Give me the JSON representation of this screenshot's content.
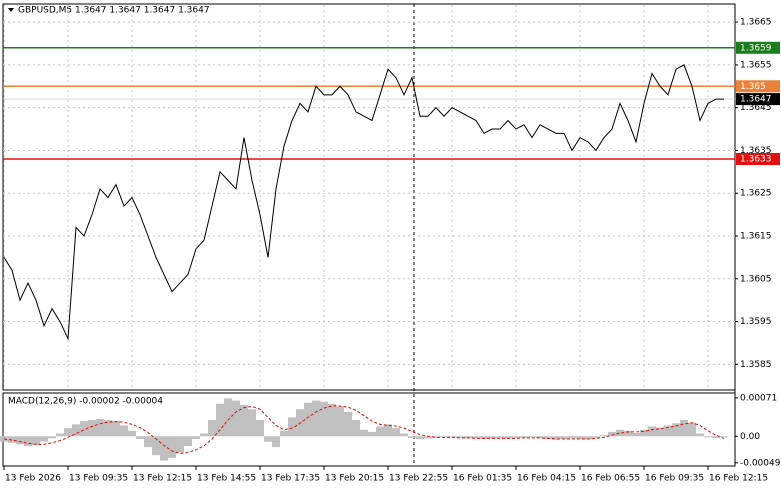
{
  "chart_data": [
    {
      "type": "line",
      "title": "GBPUSD,M5  1.3647 1.3647 1.3647 1.3647",
      "color": "#000000",
      "values": [
        1.361,
        1.3607,
        1.36,
        1.3604,
        1.36,
        1.3594,
        1.3598,
        1.3595,
        1.3591,
        1.3617,
        1.3615,
        1.362,
        1.3626,
        1.3624,
        1.3627,
        1.3622,
        1.3624,
        1.362,
        1.3615,
        1.361,
        1.3606,
        1.3602,
        1.3604,
        1.3606,
        1.3612,
        1.3614,
        1.3622,
        1.363,
        1.3628,
        1.3626,
        1.3638,
        1.3628,
        1.362,
        1.361,
        1.3626,
        1.3636,
        1.3642,
        1.3646,
        1.3644,
        1.365,
        1.3648,
        1.3648,
        1.365,
        1.3648,
        1.3644,
        1.3643,
        1.3642,
        1.3648,
        1.3654,
        1.3652,
        1.3648,
        1.3652,
        1.3643,
        1.3643,
        1.3645,
        1.3643,
        1.3645,
        1.3644,
        1.3643,
        1.3642,
        1.3639,
        1.364,
        1.364,
        1.3642,
        1.364,
        1.3641,
        1.3638,
        1.3641,
        1.364,
        1.3639,
        1.3639,
        1.3635,
        1.3638,
        1.3637,
        1.3635,
        1.3638,
        1.364,
        1.3646,
        1.3642,
        1.3637,
        1.3646,
        1.3653,
        1.365,
        1.3648,
        1.3654,
        1.3655,
        1.365,
        1.3642,
        1.3646,
        1.3647,
        1.3647
      ],
      "ylim": [
        1.3579,
        1.3669
      ],
      "yticks": [
        1.3585,
        1.3595,
        1.3605,
        1.3615,
        1.3625,
        1.3635,
        1.3645,
        1.3655,
        1.3665
      ],
      "grid": true,
      "levels": [
        {
          "value": 1.3659,
          "color": "#1a7f1a"
        },
        {
          "value": 1.365,
          "color": "#e8823a"
        },
        {
          "value": 1.3633,
          "color": "#e01010"
        }
      ],
      "last_price": 1.3647
    },
    {
      "type": "macd",
      "title": "MACD(12,26,9) -0.00002 -0.00004",
      "categories": [
        "13 Feb 2026",
        null,
        null,
        null,
        null,
        null,
        null,
        null,
        "13 Feb 09:35",
        null,
        null,
        null,
        null,
        null,
        null,
        null,
        "13 Feb 12:15",
        null,
        null,
        null,
        null,
        null,
        null,
        null,
        "13 Feb 14:55",
        null,
        null,
        null,
        null,
        null,
        null,
        null,
        "13 Feb 17:35",
        null,
        null,
        null,
        null,
        null,
        null,
        null,
        "13 Feb 20:15",
        null,
        null,
        null,
        null,
        null,
        null,
        null,
        "13 Feb 22:55",
        null,
        null,
        null,
        null,
        null,
        null,
        null,
        "16 Feb 01:35",
        null,
        null,
        null,
        null,
        null,
        null,
        null,
        "16 Feb 04:15",
        null,
        null,
        null,
        null,
        null,
        null,
        null,
        "16 Feb 06:55",
        null,
        null,
        null,
        null,
        null,
        null,
        null,
        "16 Feb 09:35",
        null,
        null,
        null,
        null,
        null,
        null,
        null,
        "16 Feb 12:15",
        null,
        null
      ],
      "series": [
        {
          "name": "MACD",
          "color": "#c0c0c0",
          "values": [
            -0.0001,
            -0.00012,
            -0.00015,
            -0.00018,
            -0.00016,
            -0.0001,
            -4e-05,
            5e-05,
            0.00015,
            0.00022,
            0.00028,
            0.0003,
            0.00032,
            0.0003,
            0.00028,
            0.0002,
            0.0001,
            -5e-05,
            -0.0002,
            -0.00035,
            -0.00045,
            -0.0004,
            -0.0003,
            -0.00018,
            -5e-05,
            5e-05,
            0.0003,
            0.0006,
            0.0007,
            0.00066,
            0.00058,
            0.0005,
            0.0003,
            -0.0001,
            -0.0002,
            0.0001,
            0.00035,
            0.0005,
            0.00062,
            0.00066,
            0.00064,
            0.0006,
            0.00055,
            0.00045,
            0.0003,
            0.00012,
            8e-05,
            0.00018,
            0.00022,
            0.00015,
            5e-05,
            -3e-05,
            -5e-05,
            -4e-05,
            -3e-05,
            -2e-05,
            -2e-05,
            -3e-05,
            -4e-05,
            -4e-05,
            -5e-05,
            -4e-05,
            -3e-05,
            -4e-05,
            -3e-05,
            -3e-05,
            -2e-05,
            -4e-05,
            -5e-05,
            -6e-05,
            -5e-05,
            -4e-05,
            -5e-05,
            -6e-05,
            -3e-05,
            2e-05,
            8e-05,
            0.00012,
            0.0001,
            6e-05,
            0.00012,
            0.00018,
            0.00016,
            0.0002,
            0.00024,
            0.0003,
            0.00025,
            5e-05,
            -2e-05,
            -3e-05,
            -2e-05
          ]
        },
        {
          "name": "Signal",
          "color": "#e01010",
          "values": [
            -5e-05,
            -7e-05,
            -0.0001,
            -0.00013,
            -0.00015,
            -0.00015,
            -0.00012,
            -8e-05,
            -2e-05,
            5e-05,
            0.00012,
            0.00018,
            0.00023,
            0.00026,
            0.00027,
            0.00026,
            0.00022,
            0.00016,
            7e-05,
            -5e-05,
            -0.00017,
            -0.00027,
            -0.00032,
            -0.0003,
            -0.00025,
            -0.00018,
            -5e-05,
            0.00012,
            0.0003,
            0.00045,
            0.00053,
            0.00055,
            0.0005,
            0.00035,
            0.0002,
            0.00012,
            0.00015,
            0.00024,
            0.00035,
            0.00045,
            0.00052,
            0.00056,
            0.00056,
            0.00054,
            0.00048,
            0.00038,
            0.00028,
            0.00022,
            0.0002,
            0.00019,
            0.00015,
            9e-05,
            3e-05,
            0.0,
            -2e-05,
            -2e-05,
            -2e-05,
            -3e-05,
            -3e-05,
            -4e-05,
            -4e-05,
            -4e-05,
            -4e-05,
            -4e-05,
            -4e-05,
            -3e-05,
            -3e-05,
            -3e-05,
            -4e-05,
            -5e-05,
            -5e-05,
            -5e-05,
            -5e-05,
            -5e-05,
            -4e-05,
            -2e-05,
            2e-05,
            6e-05,
            8e-05,
            8e-05,
            9e-05,
            0.00012,
            0.00014,
            0.00016,
            0.00019,
            0.00023,
            0.00025,
            0.0002,
            0.0001,
            2e-05,
            -4e-05
          ]
        }
      ],
      "ylim": [
        -0.00055,
        0.0008
      ],
      "yticks": [
        0.00071,
        {
          "value": 0,
          "label": "0.00"
        },
        -0.00049
      ]
    }
  ]
}
